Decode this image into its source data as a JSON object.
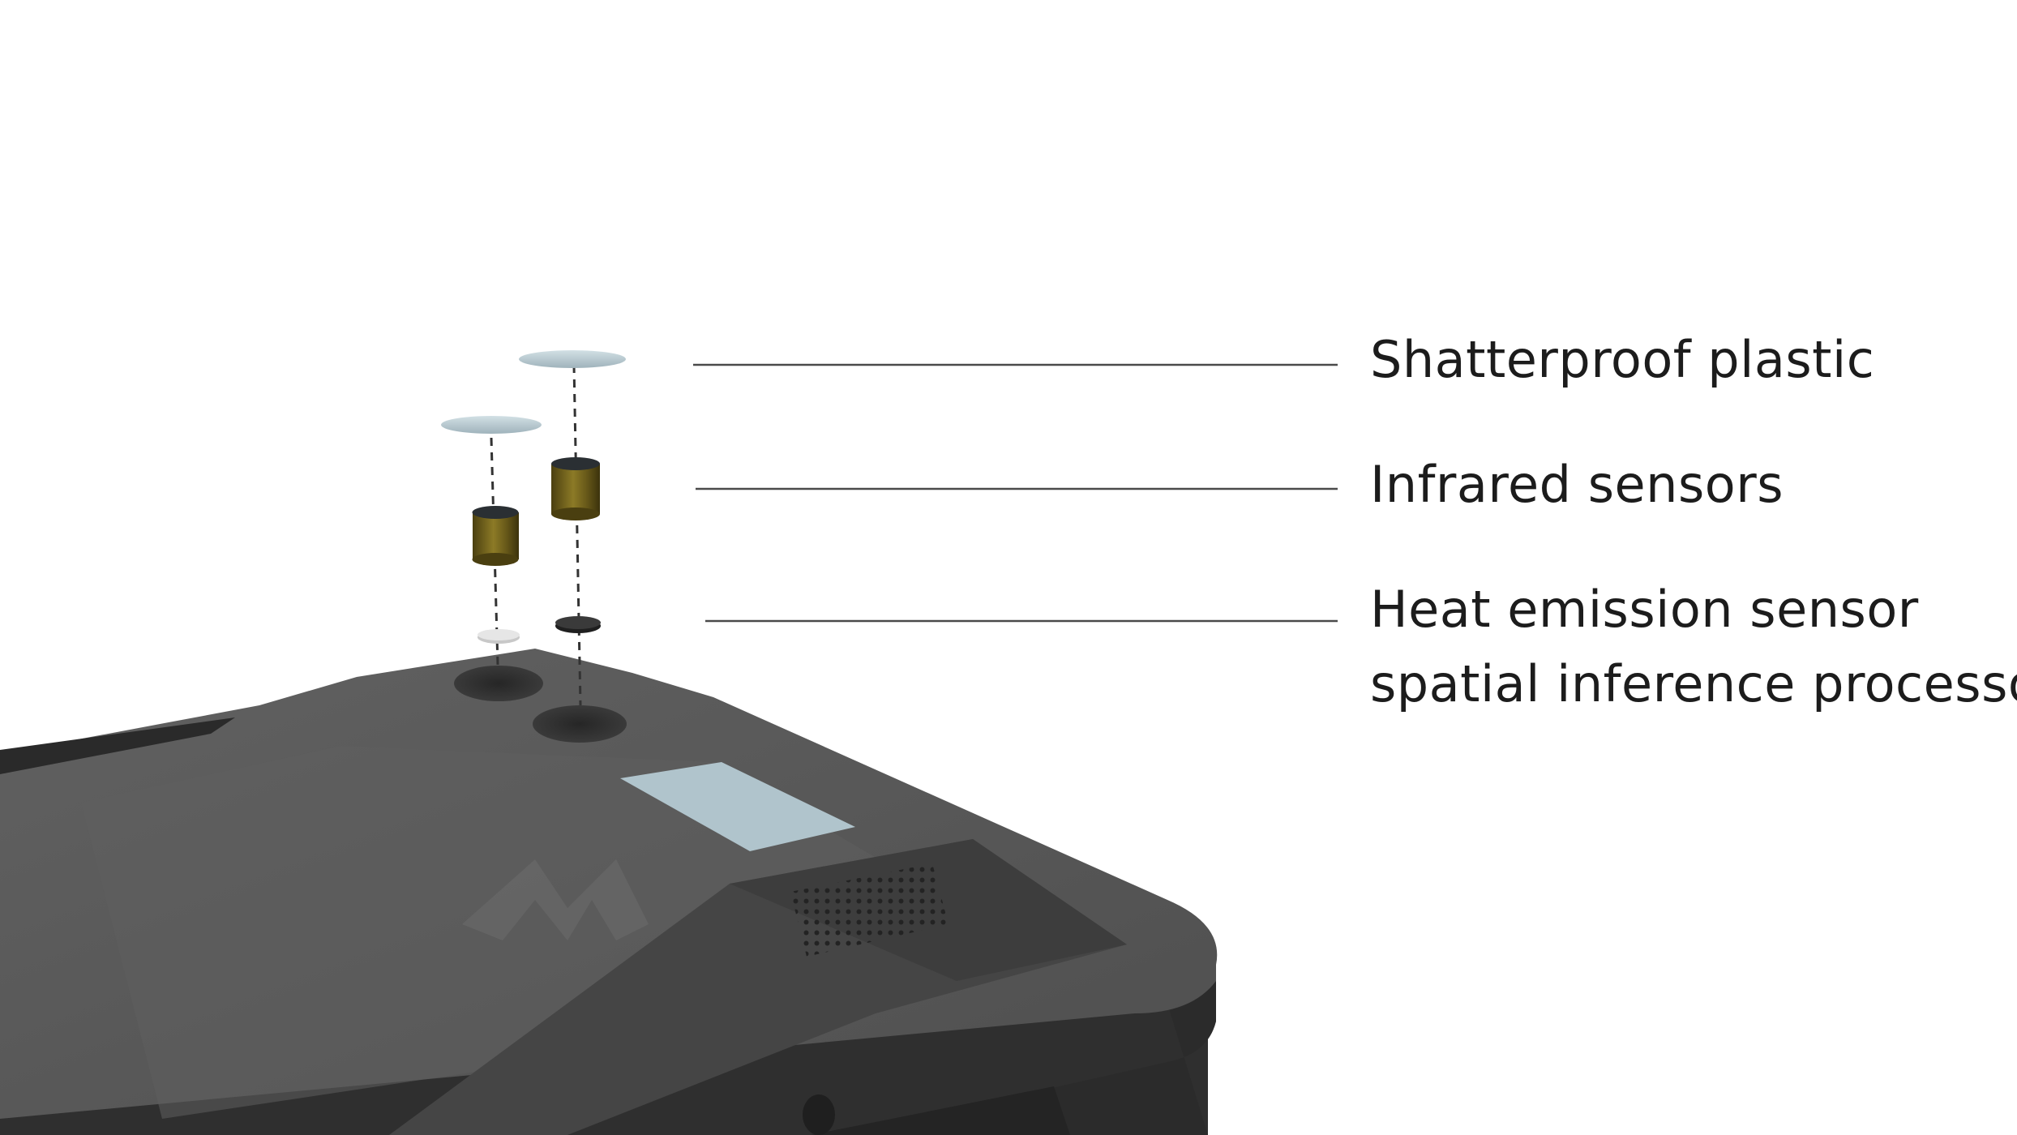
{
  "callouts": {
    "shatterproof": "Shatterproof plastic",
    "infrared": "Infrared sensors",
    "heat_line1": "Heat emission sensor",
    "heat_line2": "spatial inference processor"
  },
  "colors": {
    "background": "#ffffff",
    "device_body": "#505050",
    "device_top": "#585858",
    "device_edge": "#2e2e2e",
    "lens": "#b3c5cc",
    "sensor_gold": "#7a6a1e",
    "leader_line": "#4a4a4a",
    "label_text": "#1c1c1c"
  }
}
